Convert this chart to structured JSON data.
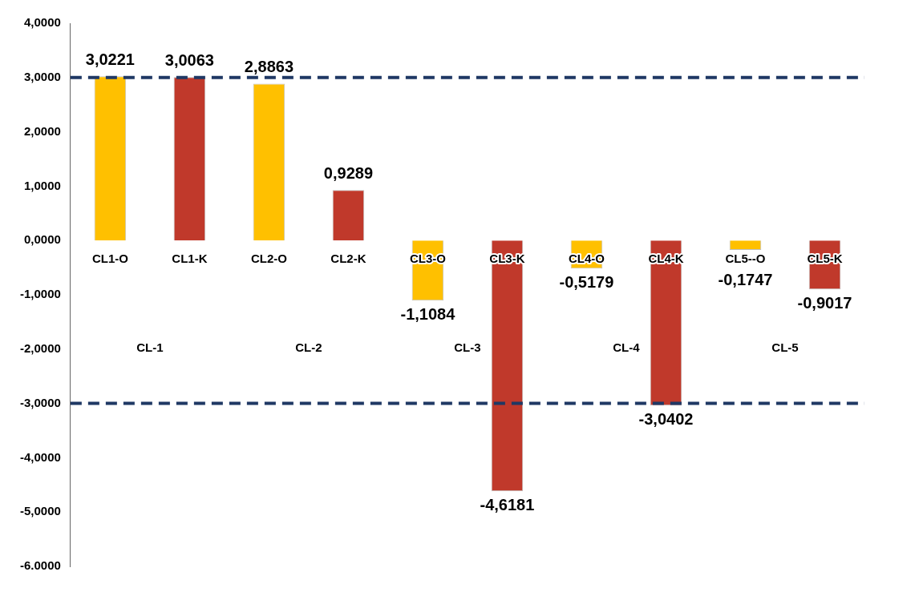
{
  "chart_data": {
    "type": "bar",
    "categories": [
      "CL1-O",
      "CL1-K",
      "CL2-O",
      "CL2-K",
      "CL3-O",
      "CL3-K",
      "CL4-O",
      "CL4-K",
      "CL5--O",
      "CL5-K"
    ],
    "values": [
      3.0221,
      3.0063,
      2.8863,
      0.9289,
      -1.1084,
      -4.6181,
      -0.5179,
      -3.0402,
      -0.1747,
      -0.9017
    ],
    "colors": [
      "#ffc000",
      "#c0392b",
      "#ffc000",
      "#c0392b",
      "#ffc000",
      "#c0392b",
      "#ffc000",
      "#c0392b",
      "#ffc000",
      "#c0392b"
    ],
    "value_labels": [
      "3,0221",
      "3,0063",
      "2,8863",
      "0,9289",
      "-1,1084",
      "-4,6181",
      "-0,5179",
      "-3,0402",
      "-0,1747",
      "-0,9017"
    ],
    "ylim": [
      -6,
      4
    ],
    "yticks": [
      {
        "value": -6,
        "label": "-6.0000"
      },
      {
        "value": -5,
        "label": "-5,0000"
      },
      {
        "value": -4,
        "label": "-4,0000"
      },
      {
        "value": -3,
        "label": "-3,0000"
      },
      {
        "value": -2,
        "label": "-2,0000"
      },
      {
        "value": -1,
        "label": "-1,0000"
      },
      {
        "value": 0,
        "label": "0,0000"
      },
      {
        "value": 1,
        "label": "1,0000"
      },
      {
        "value": 2,
        "label": "2,0000"
      },
      {
        "value": 3,
        "label": "3,0000"
      },
      {
        "value": 4,
        "label": "4,0000"
      }
    ],
    "ref_lines": [
      {
        "axis": "y",
        "value": 3,
        "color": "#1f3864",
        "line_style": "dashed"
      },
      {
        "axis": "y",
        "value": -3,
        "color": "#1f3864",
        "line_style": "dashed"
      }
    ],
    "annotations": [
      "CL-1",
      "CL-2",
      "CL-3",
      "CL-4",
      "CL-5"
    ],
    "grid": false,
    "legend": false
  }
}
